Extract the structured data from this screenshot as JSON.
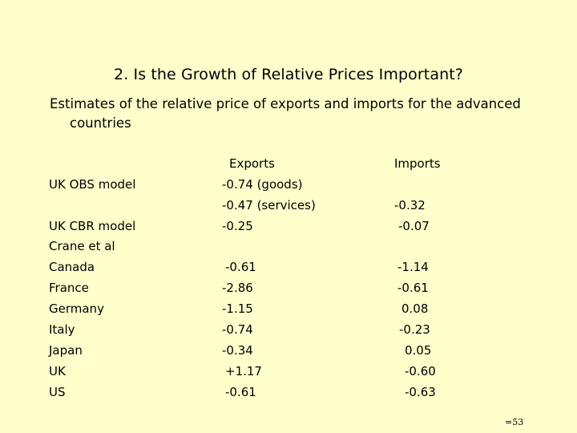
{
  "title": "2. Is the Growth of Relative Prices Important?",
  "subtitle_line1": "Estimates of the relative price of exports and imports for the advanced",
  "subtitle_line2": "countries",
  "headers": {
    "exports": "Exports",
    "imports": "Imports"
  },
  "rows": {
    "uk_obs_label": "UK OBS model",
    "uk_obs_exports_goods": "-0.74 (goods)",
    "uk_obs_exports_services": "-0.47 (services)",
    "uk_obs_imports": "-0.32",
    "uk_cbr_label": "UK CBR model",
    "uk_cbr_exports": "-0.25",
    "uk_cbr_imports": "-0.07",
    "crane_label": "Crane et al",
    "canada_label": "Canada",
    "canada_exports": "-0.61",
    "canada_imports": "-1.14",
    "france_label": "France",
    "france_exports": "-2.86",
    "france_imports": "-0.61",
    "germany_label": "Germany",
    "germany_exports": "-1.15",
    "germany_imports": "0.08",
    "italy_label": "Italy",
    "italy_exports": "-0.74",
    "italy_imports": "-0.23",
    "japan_label": "Japan",
    "japan_exports": "-0.34",
    "japan_imports": "0.05",
    "uk_label": "UK",
    "uk_exports": "+1.17",
    "uk_imports": "-0.60",
    "us_label": "US",
    "us_exports": "-0.61",
    "us_imports": "-0.63"
  },
  "footer": "=53"
}
